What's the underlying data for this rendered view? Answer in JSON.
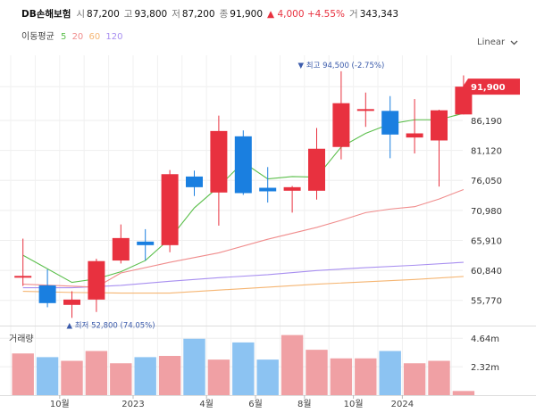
{
  "header": {
    "name": "DB손해보험",
    "open_label": "시",
    "open": "87,200",
    "high_label": "고",
    "high": "93,800",
    "low_label": "저",
    "low": "87,200",
    "close_label": "종",
    "close": "91,900",
    "change": "▲ 4,000 +4.55%",
    "volume_label": "거",
    "volume": "343,343"
  },
  "ma_legend": {
    "title": "이동평균",
    "items": [
      {
        "label": "5",
        "color": "#5bbf4b"
      },
      {
        "label": "20",
        "color": "#f08c8c"
      },
      {
        "label": "60",
        "color": "#f5b572"
      },
      {
        "label": "120",
        "color": "#a88ff0"
      }
    ]
  },
  "scale_mode": "Linear",
  "volume_panel_title": "거래량",
  "colors": {
    "up": "#e8313f",
    "down": "#1a7fe0",
    "up_vol": "#f0a0a4",
    "down_vol": "#8cc3f2",
    "grid": "#eeeeee"
  },
  "chart_data": {
    "type": "candlestick",
    "price_axis": {
      "ticks": [
        "91,900",
        "86,190",
        "81,120",
        "76,050",
        "70,980",
        "65,910",
        "60,840",
        "55,770"
      ],
      "range": [
        51500,
        97500
      ]
    },
    "volume_axis": {
      "ticks": [
        "4.64m",
        "2.32m"
      ],
      "range": [
        0,
        5.6
      ]
    },
    "x_ticks": [
      "10월",
      "2023",
      "4월",
      "6월",
      "8월",
      "10월",
      "2024"
    ],
    "candles": [
      {
        "o": 59700,
        "h": 66200,
        "l": 58200,
        "c": 59900,
        "vol": 3.4
      },
      {
        "o": 58300,
        "h": 61000,
        "l": 54600,
        "c": 55300,
        "vol": 3.1
      },
      {
        "o": 55000,
        "h": 57300,
        "l": 52800,
        "c": 55900,
        "vol": 2.8
      },
      {
        "o": 55900,
        "h": 62800,
        "l": 53800,
        "c": 62400,
        "vol": 3.6
      },
      {
        "o": 62500,
        "h": 68600,
        "l": 62000,
        "c": 66300,
        "vol": 2.6
      },
      {
        "o": 65700,
        "h": 67800,
        "l": 62500,
        "c": 65100,
        "vol": 3.1
      },
      {
        "o": 65100,
        "h": 77800,
        "l": 63900,
        "c": 77100,
        "vol": 3.2
      },
      {
        "o": 76700,
        "h": 77700,
        "l": 73400,
        "c": 74900,
        "vol": 4.6
      },
      {
        "o": 74000,
        "h": 87000,
        "l": 68400,
        "c": 84400,
        "vol": 2.9
      },
      {
        "o": 83500,
        "h": 84500,
        "l": 73600,
        "c": 73900,
        "vol": 4.3
      },
      {
        "o": 74800,
        "h": 78300,
        "l": 72300,
        "c": 74200,
        "vol": 2.9
      },
      {
        "o": 74300,
        "h": 75100,
        "l": 70600,
        "c": 74900,
        "vol": 4.9
      },
      {
        "o": 74300,
        "h": 84900,
        "l": 72800,
        "c": 81400,
        "vol": 3.7
      },
      {
        "o": 81700,
        "h": 94500,
        "l": 79600,
        "c": 89100,
        "vol": 3.0
      },
      {
        "o": 88100,
        "h": 90900,
        "l": 85100,
        "c": 88100,
        "vol": 3.0
      },
      {
        "o": 87800,
        "h": 90300,
        "l": 79800,
        "c": 83800,
        "vol": 3.6
      },
      {
        "o": 83300,
        "h": 89800,
        "l": 80600,
        "c": 84000,
        "vol": 2.6
      },
      {
        "o": 82800,
        "h": 88000,
        "l": 75000,
        "c": 87900,
        "vol": 2.8
      },
      {
        "o": 87200,
        "h": 93800,
        "l": 87200,
        "c": 91900,
        "vol": 0.34
      }
    ],
    "ma5": [
      [
        0,
        63400
      ],
      [
        2,
        58800
      ],
      [
        3,
        59400
      ],
      [
        4,
        60600
      ],
      [
        5,
        62500
      ],
      [
        6,
        66200
      ],
      [
        7,
        71400
      ],
      [
        8,
        75000
      ],
      [
        9,
        79100
      ],
      [
        10,
        76300
      ],
      [
        11,
        76700
      ],
      [
        12,
        76600
      ],
      [
        13,
        81700
      ],
      [
        14,
        84000
      ],
      [
        15,
        85600
      ],
      [
        16,
        86300
      ],
      [
        17,
        86300
      ],
      [
        18,
        87400
      ]
    ],
    "ma20": [
      [
        0,
        58500
      ],
      [
        3,
        58000
      ],
      [
        4,
        60400
      ],
      [
        6,
        62200
      ],
      [
        8,
        63800
      ],
      [
        10,
        66100
      ],
      [
        12,
        68100
      ],
      [
        13,
        69300
      ],
      [
        14,
        70600
      ],
      [
        15,
        71200
      ],
      [
        16,
        71600
      ],
      [
        17,
        72900
      ],
      [
        18,
        74500
      ]
    ],
    "ma60": [
      [
        0,
        57300
      ],
      [
        2,
        57100
      ],
      [
        4,
        57000
      ],
      [
        6,
        57000
      ],
      [
        8,
        57500
      ],
      [
        10,
        58000
      ],
      [
        12,
        58500
      ],
      [
        14,
        58900
      ],
      [
        16,
        59300
      ],
      [
        18,
        59800
      ]
    ],
    "ma120": [
      [
        0,
        57900
      ],
      [
        2,
        57900
      ],
      [
        4,
        58300
      ],
      [
        6,
        59000
      ],
      [
        8,
        59600
      ],
      [
        10,
        60100
      ],
      [
        12,
        60800
      ],
      [
        14,
        61300
      ],
      [
        16,
        61700
      ],
      [
        18,
        62200
      ]
    ],
    "annotations": {
      "high": "▼ 최고 94,500 (-2.75%)",
      "low": "▲ 최저 52,800 (74.05%)",
      "last_price": "91,900"
    }
  }
}
